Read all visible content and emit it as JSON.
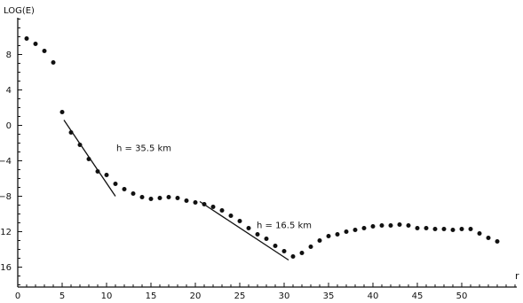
{
  "chart_data": {
    "type": "scatter",
    "title": "",
    "xlabel": "r",
    "ylabel": "LOG(E)",
    "xlim": [
      0,
      56
    ],
    "ylim": [
      -18,
      12
    ],
    "x_ticks": [
      0,
      5,
      10,
      15,
      20,
      25,
      30,
      35,
      40,
      45,
      50
    ],
    "y_ticks": [
      8,
      4,
      0,
      -4,
      -8,
      -12,
      -16
    ],
    "grid": false,
    "legend": "none",
    "series": [
      {
        "points": [
          [
            1,
            9.8
          ],
          [
            2,
            9.2
          ],
          [
            3,
            8.4
          ],
          [
            4,
            7.1
          ],
          [
            5,
            1.5
          ],
          [
            6,
            -0.8
          ],
          [
            7,
            -2.2
          ],
          [
            8,
            -3.8
          ],
          [
            9,
            -5.2
          ],
          [
            10,
            -5.6
          ],
          [
            11,
            -6.6
          ],
          [
            12,
            -7.2
          ],
          [
            13,
            -7.7
          ],
          [
            14,
            -8.1
          ],
          [
            15,
            -8.3
          ],
          [
            16,
            -8.2
          ],
          [
            17,
            -8.1
          ],
          [
            18,
            -8.2
          ],
          [
            19,
            -8.5
          ],
          [
            20,
            -8.7
          ],
          [
            21,
            -8.9
          ],
          [
            22,
            -9.2
          ],
          [
            23,
            -9.6
          ],
          [
            24,
            -10.2
          ],
          [
            25,
            -10.8
          ],
          [
            26,
            -11.6
          ],
          [
            27,
            -12.3
          ],
          [
            28,
            -12.8
          ],
          [
            29,
            -13.6
          ],
          [
            30,
            -14.2
          ],
          [
            31,
            -14.8
          ],
          [
            32,
            -14.4
          ],
          [
            33,
            -13.7
          ],
          [
            34,
            -13.0
          ],
          [
            35,
            -12.5
          ],
          [
            36,
            -12.3
          ],
          [
            37,
            -12.0
          ],
          [
            38,
            -11.8
          ],
          [
            39,
            -11.6
          ],
          [
            40,
            -11.4
          ],
          [
            41,
            -11.3
          ],
          [
            42,
            -11.3
          ],
          [
            43,
            -11.2
          ],
          [
            44,
            -11.3
          ],
          [
            45,
            -11.6
          ],
          [
            46,
            -11.6
          ],
          [
            47,
            -11.7
          ],
          [
            48,
            -11.7
          ],
          [
            49,
            -11.8
          ],
          [
            50,
            -11.7
          ],
          [
            51,
            -11.7
          ],
          [
            52,
            -12.2
          ],
          [
            53,
            -12.7
          ],
          [
            54,
            -13.1
          ]
        ]
      }
    ],
    "fit_lines": [
      {
        "label": "h = 35.5 km",
        "x": [
          5.2,
          11
        ],
        "y": [
          0.6,
          -8
        ]
      },
      {
        "label": "h = 16.5 km",
        "x": [
          20.5,
          30.5
        ],
        "y": [
          -8.6,
          -15.2
        ]
      }
    ]
  }
}
